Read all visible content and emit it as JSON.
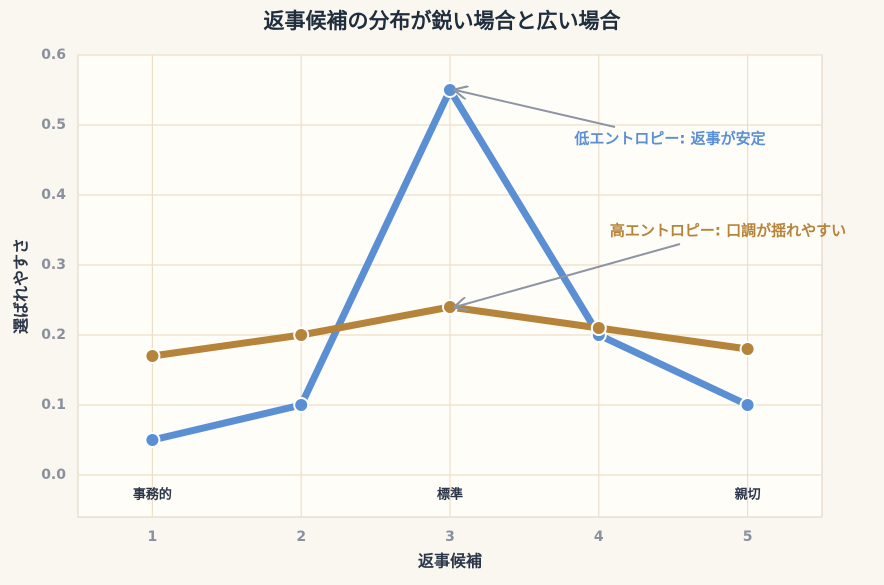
{
  "chart_data": {
    "type": "line",
    "title": "返事候補の分布が鋭い場合と広い場合",
    "x_label": "返事候補",
    "y_label": "選ばれやすさ",
    "x": [
      1,
      2,
      3,
      4,
      5
    ],
    "series": [
      {
        "color": "#5b8fd4",
        "values": [
          0.05,
          0.1,
          0.55,
          0.2,
          0.1
        ]
      },
      {
        "color": "#b5843a",
        "values": [
          0.17,
          0.2,
          0.24,
          0.21,
          0.18
        ]
      }
    ],
    "xlim": [
      0.5,
      5.5
    ],
    "ylim": [
      -0.06,
      0.6
    ],
    "xticks": [
      1,
      2,
      3,
      4,
      5
    ],
    "yticks": [
      {
        "value": 0,
        "label": "0.0"
      },
      0.1,
      0.2,
      0.3,
      0.4,
      0.5,
      0.6
    ],
    "grid": true,
    "point_labels": [
      {
        "text": "事務的",
        "x": 1
      },
      {
        "text": "標準",
        "x": 3
      },
      {
        "text": "親切",
        "x": 5
      }
    ],
    "annotations": [
      {
        "text": "低エントロピー: 返事が安定",
        "x": 3,
        "y": 0.55,
        "color": "#5b8fd4"
      },
      {
        "text": "高エントロピー: 口調が揺れやすい",
        "x": 3,
        "y": 0.24,
        "color": "#b5843a"
      }
    ]
  }
}
